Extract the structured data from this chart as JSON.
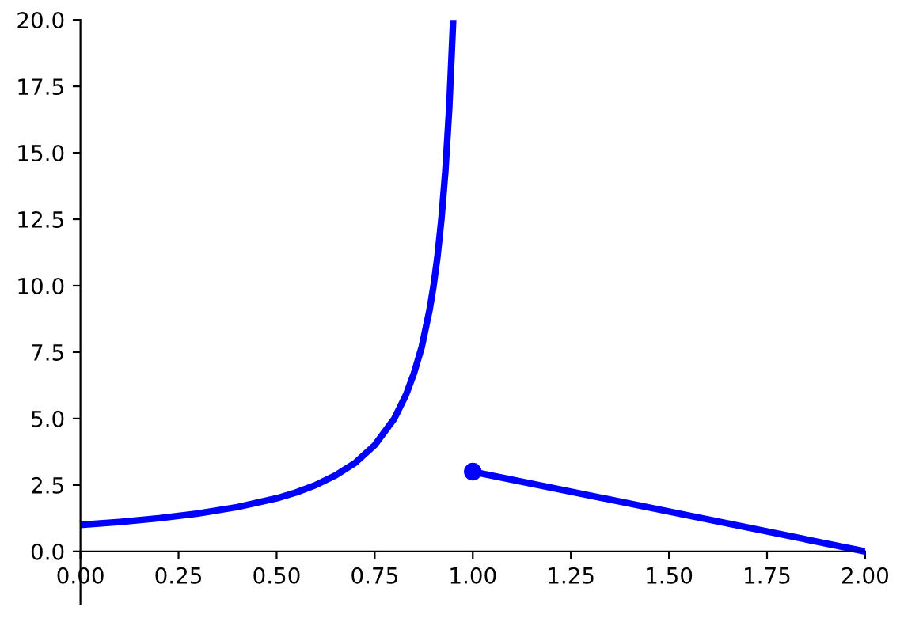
{
  "chart_data": {
    "type": "line",
    "series": [
      {
        "color": "#0000ff",
        "x": [
          0,
          0.1,
          0.2,
          0.3,
          0.4,
          0.5,
          0.55,
          0.6,
          0.65,
          0.7,
          0.75,
          0.8,
          0.83,
          0.85,
          0.87,
          0.89,
          0.9,
          0.91,
          0.92,
          0.93,
          0.94,
          0.95
        ],
        "values": [
          1,
          1.11,
          1.25,
          1.43,
          1.67,
          2,
          2.22,
          2.5,
          2.86,
          3.33,
          4,
          5,
          5.9,
          6.7,
          7.7,
          9.1,
          10,
          11.1,
          12.5,
          14.3,
          16.7,
          20
        ]
      },
      {
        "color": "#0000ff",
        "x": [
          1,
          2
        ],
        "values": [
          3,
          0
        ]
      },
      {
        "type": "scatter",
        "color": "#0000ff",
        "x": [
          1
        ],
        "values": [
          3
        ],
        "marker": "circle"
      }
    ],
    "xlim": [
      0,
      2
    ],
    "ylim": [
      -2,
      20
    ],
    "xticks": [
      {
        "value": 0,
        "label": "0.00"
      },
      {
        "value": 0.25,
        "label": "0.25"
      },
      {
        "value": 0.5,
        "label": "0.50"
      },
      {
        "value": 0.75,
        "label": "0.75"
      },
      {
        "value": 1,
        "label": "1.00"
      },
      {
        "value": 1.25,
        "label": "1.25"
      },
      {
        "value": 1.5,
        "label": "1.50"
      },
      {
        "value": 1.75,
        "label": "1.75"
      },
      {
        "value": 2,
        "label": "2.00"
      }
    ],
    "yticks": [
      {
        "value": 0,
        "label": "0.0"
      },
      {
        "value": 2.5,
        "label": "2.5"
      },
      {
        "value": 5,
        "label": "5.0"
      },
      {
        "value": 7.5,
        "label": "7.5"
      },
      {
        "value": 10,
        "label": "10.0"
      },
      {
        "value": 12.5,
        "label": "12.5"
      },
      {
        "value": 15,
        "label": "15.0"
      },
      {
        "value": 17.5,
        "label": "17.5"
      },
      {
        "value": 20,
        "label": "20.0"
      }
    ],
    "grid": false,
    "legend": false
  }
}
